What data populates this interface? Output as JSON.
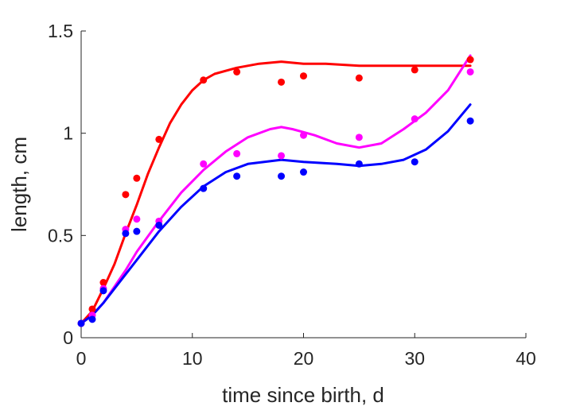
{
  "chart_data": {
    "type": "scatter",
    "xlabel": "time since birth, d",
    "ylabel": "length, cm",
    "xlim": [
      0,
      40
    ],
    "ylim": [
      0,
      1.5
    ],
    "xticks": [
      0,
      10,
      20,
      30,
      40
    ],
    "yticks": [
      0,
      0.5,
      1,
      1.5
    ],
    "ytick_labels": [
      "0",
      "0.5",
      "1",
      "1.5"
    ],
    "grid": false,
    "series": [
      {
        "color": "#ff0000",
        "points": [
          [
            0,
            0.07
          ],
          [
            1,
            0.14
          ],
          [
            2,
            0.27
          ],
          [
            4,
            0.7
          ],
          [
            5,
            0.78
          ],
          [
            7,
            0.97
          ],
          [
            11,
            1.26
          ],
          [
            14,
            1.3
          ],
          [
            18,
            1.25
          ],
          [
            20,
            1.28
          ],
          [
            25,
            1.27
          ],
          [
            30,
            1.31
          ],
          [
            35,
            1.36
          ]
        ],
        "fit": [
          [
            0,
            0.07
          ],
          [
            1,
            0.13
          ],
          [
            2,
            0.24
          ],
          [
            3,
            0.36
          ],
          [
            4,
            0.51
          ],
          [
            5,
            0.65
          ],
          [
            6,
            0.8
          ],
          [
            7,
            0.93
          ],
          [
            8,
            1.05
          ],
          [
            9,
            1.14
          ],
          [
            10,
            1.21
          ],
          [
            11,
            1.26
          ],
          [
            12,
            1.29
          ],
          [
            14,
            1.32
          ],
          [
            16,
            1.34
          ],
          [
            18,
            1.35
          ],
          [
            20,
            1.34
          ],
          [
            22,
            1.34
          ],
          [
            25,
            1.33
          ],
          [
            30,
            1.33
          ],
          [
            35,
            1.33
          ]
        ]
      },
      {
        "color": "#ff00ff",
        "points": [
          [
            0,
            0.07
          ],
          [
            1,
            0.11
          ],
          [
            2,
            0.24
          ],
          [
            4,
            0.53
          ],
          [
            5,
            0.58
          ],
          [
            7,
            0.57
          ],
          [
            11,
            0.85
          ],
          [
            14,
            0.9
          ],
          [
            18,
            0.89
          ],
          [
            20,
            0.99
          ],
          [
            25,
            0.98
          ],
          [
            30,
            1.07
          ],
          [
            35,
            1.3
          ]
        ],
        "fit": [
          [
            0,
            0.07
          ],
          [
            1,
            0.11
          ],
          [
            2,
            0.17
          ],
          [
            3,
            0.25
          ],
          [
            4,
            0.33
          ],
          [
            5,
            0.42
          ],
          [
            7,
            0.57
          ],
          [
            9,
            0.71
          ],
          [
            11,
            0.82
          ],
          [
            13,
            0.91
          ],
          [
            15,
            0.98
          ],
          [
            17,
            1.02
          ],
          [
            18,
            1.03
          ],
          [
            19,
            1.02
          ],
          [
            21,
            0.99
          ],
          [
            23,
            0.95
          ],
          [
            25,
            0.93
          ],
          [
            27,
            0.95
          ],
          [
            29,
            1.02
          ],
          [
            31,
            1.1
          ],
          [
            33,
            1.21
          ],
          [
            35,
            1.38
          ]
        ]
      },
      {
        "color": "#0000ff",
        "points": [
          [
            0,
            0.07
          ],
          [
            1,
            0.09
          ],
          [
            2,
            0.23
          ],
          [
            4,
            0.51
          ],
          [
            5,
            0.52
          ],
          [
            7,
            0.55
          ],
          [
            11,
            0.73
          ],
          [
            14,
            0.79
          ],
          [
            18,
            0.79
          ],
          [
            20,
            0.81
          ],
          [
            25,
            0.85
          ],
          [
            30,
            0.86
          ],
          [
            35,
            1.06
          ]
        ],
        "fit": [
          [
            0,
            0.07
          ],
          [
            1,
            0.11
          ],
          [
            2,
            0.17
          ],
          [
            3,
            0.24
          ],
          [
            4,
            0.31
          ],
          [
            5,
            0.38
          ],
          [
            7,
            0.52
          ],
          [
            9,
            0.64
          ],
          [
            11,
            0.74
          ],
          [
            13,
            0.81
          ],
          [
            15,
            0.85
          ],
          [
            18,
            0.87
          ],
          [
            20,
            0.86
          ],
          [
            23,
            0.85
          ],
          [
            25,
            0.84
          ],
          [
            27,
            0.85
          ],
          [
            29,
            0.87
          ],
          [
            31,
            0.92
          ],
          [
            33,
            1.01
          ],
          [
            35,
            1.14
          ]
        ]
      }
    ]
  }
}
